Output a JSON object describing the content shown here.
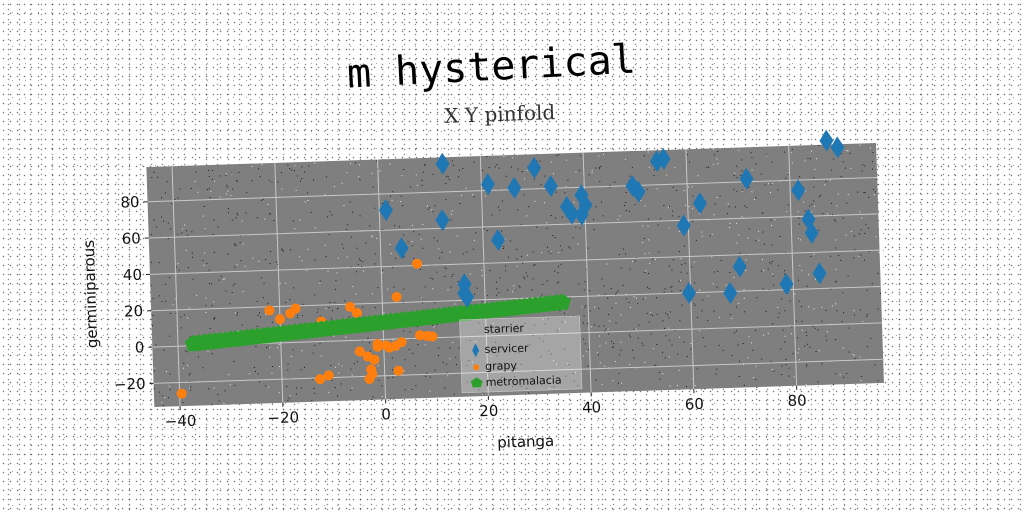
{
  "chart_data": {
    "type": "scatter",
    "title": "m hysterical",
    "subtitle": "X Y pinfold",
    "xlabel": "pitanga",
    "ylabel": "germiniparous",
    "xlim": [
      -45,
      97
    ],
    "ylim": [
      -33,
      99
    ],
    "xticks": [
      -40,
      -20,
      0,
      20,
      40,
      60,
      80
    ],
    "yticks": [
      -20,
      0,
      20,
      40,
      60,
      80
    ],
    "grid": true,
    "legend_position": "lower-center",
    "legend_title": "starrier",
    "series": [
      {
        "name": "servicer",
        "marker": "diamond",
        "color": "#1f77b4",
        "points": [
          [
            12.6,
            95.5
          ],
          [
            87.4,
            101.2
          ],
          [
            89.5,
            97.3
          ],
          [
            55.6,
            94.1
          ],
          [
            54.3,
            93.0
          ],
          [
            30.4,
            91.6
          ],
          [
            21.3,
            83.4
          ],
          [
            26.4,
            80.9
          ],
          [
            33.5,
            81.2
          ],
          [
            39.4,
            75.6
          ],
          [
            40.1,
            70.2
          ],
          [
            49.4,
            79.8
          ],
          [
            50.5,
            76.5
          ],
          [
            71.6,
            81.7
          ],
          [
            81.6,
            74.4
          ],
          [
            62.4,
            69.1
          ],
          [
            1.3,
            71.0
          ],
          [
            12.2,
            64.5
          ],
          [
            36.5,
            69.5
          ],
          [
            37.4,
            65.7
          ],
          [
            39.3,
            64.9
          ],
          [
            59.1,
            57.1
          ],
          [
            83.4,
            58.2
          ],
          [
            83.9,
            50.7
          ],
          [
            4.1,
            49.8
          ],
          [
            22.9,
            52.6
          ],
          [
            16.1,
            28.8
          ],
          [
            16.0,
            24.0
          ],
          [
            16.5,
            21.8
          ],
          [
            85.2,
            28.3
          ],
          [
            69.7,
            33.5
          ],
          [
            78.7,
            23.0
          ],
          [
            59.7,
            19.9
          ],
          [
            67.7,
            19.2
          ]
        ]
      },
      {
        "name": "grapy",
        "marker": "circle",
        "color": "#ff7f0e",
        "points": [
          [
            -39.6,
            -26.1
          ],
          [
            -22.0,
            18.0
          ],
          [
            -20.0,
            13.0
          ],
          [
            -18.0,
            16.0
          ],
          [
            -16.9,
            18.6
          ],
          [
            -12.0,
            11.0
          ],
          [
            -6.3,
            18.5
          ],
          [
            -5.0,
            15.0
          ],
          [
            2.8,
            23.1
          ],
          [
            7.0,
            41.0
          ],
          [
            -9.4,
            5.7
          ],
          [
            -1.2,
            -2.4
          ],
          [
            0.5,
            -3.4
          ],
          [
            1.1,
            -4.6
          ],
          [
            2.3,
            -3.8
          ],
          [
            3.5,
            -1.8
          ],
          [
            7.1,
            1.6
          ],
          [
            8.5,
            1.1
          ],
          [
            9.5,
            0.7
          ],
          [
            -4.7,
            -6.2
          ],
          [
            -3.2,
            -9.1
          ],
          [
            -1.9,
            -11.0
          ],
          [
            -2.6,
            -16.3
          ],
          [
            -2.4,
            -18.8
          ],
          [
            -3.0,
            -21.5
          ],
          [
            -12.6,
            -20.7
          ],
          [
            2.7,
            -17.5
          ],
          [
            -1.2,
            -3.9
          ],
          [
            -10.9,
            -18.8
          ],
          [
            -7.0,
            9.0
          ]
        ]
      },
      {
        "name": "metromalacia",
        "marker": "pentagon",
        "color": "#2ca02c",
        "line": {
          "x": [
            -37,
            35
          ],
          "y": [
            1,
            17
          ]
        },
        "count": 70
      }
    ]
  }
}
